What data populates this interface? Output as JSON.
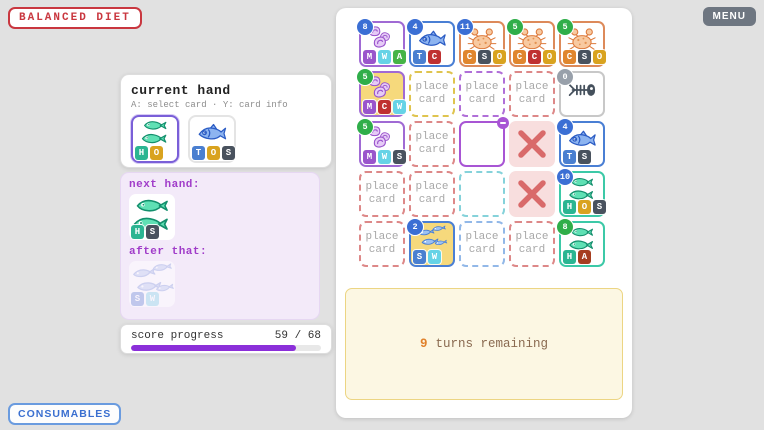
{
  "app": {
    "title": "BALANCED DIET",
    "menu_label": "MENU",
    "consumables_label": "CONSUMABLES"
  },
  "current_hand": {
    "title": "current hand",
    "hint": "A: select card · Y: card info",
    "cards": [
      {
        "icon": "herring-icon",
        "selected": true,
        "letters": [
          {
            "letter": "H",
            "color": "teal"
          },
          {
            "letter": "O",
            "color": "gold"
          }
        ]
      },
      {
        "icon": "tuna-icon",
        "selected": false,
        "letters": [
          {
            "letter": "T",
            "color": "blue"
          },
          {
            "letter": "O",
            "color": "gold"
          },
          {
            "letter": "S",
            "color": "dark"
          }
        ]
      }
    ]
  },
  "preview": {
    "next_label": "next hand:",
    "next_card": {
      "icon": "herring-icon",
      "letters": [
        {
          "letter": "H",
          "color": "teal"
        },
        {
          "letter": "S",
          "color": "dark"
        }
      ]
    },
    "after_label": "after that:",
    "after_card": {
      "icon": "sardines-faded-icon",
      "letters": [
        {
          "letter": "S",
          "color": "periwinkle"
        },
        {
          "letter": "W",
          "color": "lightcyan"
        }
      ]
    }
  },
  "score": {
    "label": "score progress",
    "current": 59,
    "max": 68,
    "display": "59 / 68"
  },
  "message": {
    "number": "9",
    "text": "turns remaining"
  },
  "grid": {
    "slot_label": "place card",
    "cells": [
      {
        "type": "card",
        "icon": "shell-icon",
        "border": "purple",
        "bg": "white",
        "badge": {
          "value": "8",
          "color": "blue"
        },
        "letters": [
          {
            "letter": "M",
            "color": "purple"
          },
          {
            "letter": "W",
            "color": "cyan"
          },
          {
            "letter": "A",
            "color": "green"
          }
        ]
      },
      {
        "type": "card",
        "icon": "tuna-icon",
        "border": "blue",
        "bg": "white",
        "badge": {
          "value": "4",
          "color": "blue"
        },
        "letters": [
          {
            "letter": "T",
            "color": "blue"
          },
          {
            "letter": "C",
            "color": "red"
          }
        ]
      },
      {
        "type": "card",
        "icon": "crab-icon",
        "border": "orange",
        "bg": "white",
        "badge": {
          "value": "11",
          "color": "blue"
        },
        "letters": [
          {
            "letter": "C",
            "color": "orange"
          },
          {
            "letter": "S",
            "color": "dark"
          },
          {
            "letter": "O",
            "color": "gold"
          }
        ]
      },
      {
        "type": "card",
        "icon": "crab-icon",
        "border": "orange",
        "bg": "white",
        "badge": {
          "value": "5",
          "color": "green"
        },
        "letters": [
          {
            "letter": "C",
            "color": "orange"
          },
          {
            "letter": "C",
            "color": "red"
          },
          {
            "letter": "O",
            "color": "gold"
          }
        ]
      },
      {
        "type": "card",
        "icon": "crab-icon",
        "border": "orange",
        "bg": "white",
        "badge": {
          "value": "5",
          "color": "green"
        },
        "letters": [
          {
            "letter": "C",
            "color": "orange"
          },
          {
            "letter": "S",
            "color": "dark"
          },
          {
            "letter": "O",
            "color": "gold"
          }
        ]
      },
      {
        "type": "card",
        "icon": "shell-icon",
        "border": "purple",
        "bg": "gold",
        "badge": {
          "value": "5",
          "color": "green"
        },
        "letters": [
          {
            "letter": "M",
            "color": "purple"
          },
          {
            "letter": "C",
            "color": "red"
          },
          {
            "letter": "W",
            "color": "cyan"
          }
        ]
      },
      {
        "type": "slot",
        "border": "yellow"
      },
      {
        "type": "slot",
        "border": "purple"
      },
      {
        "type": "slot",
        "border": "red"
      },
      {
        "type": "card",
        "icon": "fishbone-icon",
        "border": "gray",
        "bg": "white",
        "badge": {
          "value": "0",
          "color": "gray"
        },
        "letters": []
      },
      {
        "type": "card",
        "icon": "shell-icon",
        "border": "purple",
        "bg": "white",
        "badge": {
          "value": "5",
          "color": "green"
        },
        "letters": [
          {
            "letter": "M",
            "color": "purple"
          },
          {
            "letter": "W",
            "color": "cyan"
          },
          {
            "letter": "S",
            "color": "dark"
          }
        ]
      },
      {
        "type": "slot",
        "border": "red"
      },
      {
        "type": "cursor"
      },
      {
        "type": "blocked"
      },
      {
        "type": "card",
        "icon": "tuna-icon",
        "border": "blue",
        "bg": "white",
        "badge": {
          "value": "4",
          "color": "blue"
        },
        "letters": [
          {
            "letter": "T",
            "color": "blue"
          },
          {
            "letter": "S",
            "color": "dark"
          }
        ]
      },
      {
        "type": "slot",
        "border": "red"
      },
      {
        "type": "slot",
        "border": "red"
      },
      {
        "type": "slot-blank",
        "border": "cyan"
      },
      {
        "type": "blocked"
      },
      {
        "type": "card",
        "icon": "herring-icon",
        "border": "teal",
        "bg": "white",
        "badge": {
          "value": "10",
          "color": "blue"
        },
        "letters": [
          {
            "letter": "H",
            "color": "teal"
          },
          {
            "letter": "O",
            "color": "gold"
          },
          {
            "letter": "S",
            "color": "dark"
          }
        ]
      },
      {
        "type": "slot",
        "border": "red"
      },
      {
        "type": "card",
        "icon": "sardines-icon",
        "border": "blue",
        "bg": "gold",
        "badge": {
          "value": "2",
          "color": "blue"
        },
        "letters": [
          {
            "letter": "S",
            "color": "blue"
          },
          {
            "letter": "W",
            "color": "cyan"
          }
        ]
      },
      {
        "type": "slot",
        "border": "blue"
      },
      {
        "type": "slot",
        "border": "red"
      },
      {
        "type": "card",
        "icon": "herring-icon",
        "border": "teal",
        "bg": "white",
        "badge": {
          "value": "8",
          "color": "green"
        },
        "letters": [
          {
            "letter": "H",
            "color": "teal"
          },
          {
            "letter": "A",
            "color": "brown"
          }
        ]
      }
    ]
  },
  "colors": {
    "chip": {
      "teal": "#2bb592",
      "gold": "#d9a31f",
      "blue": "#4a7fd0",
      "dark": "#49525e",
      "orange": "#e0862e",
      "red": "#bf3030",
      "purple": "#9a55cc",
      "cyan": "#66d3e6",
      "green": "#46b446",
      "brown": "#a63d1f",
      "periwinkle": "#8fa5e0",
      "lightcyan": "#a5e0ef"
    },
    "badge": {
      "blue": "#3b6fd4",
      "green": "#2fae49",
      "gray": "#98a0aa"
    },
    "card_border": {
      "purple": "#a06ad4",
      "blue": "#4a7fd4",
      "orange": "#dd8a5a",
      "teal": "#3cc9a7",
      "gray": "#c8c8c8"
    },
    "slot_border": {
      "yellow": "#dfc44f",
      "purple": "#b06fd8",
      "red": "#dd8888",
      "cyan": "#85d2da",
      "blue": "#92b8e8"
    },
    "card_bg": {
      "white": "#ffffff",
      "gold": "#f6d97c"
    },
    "progress_fill": "#8b2fd9",
    "blocked_x": "#d96a6a"
  }
}
